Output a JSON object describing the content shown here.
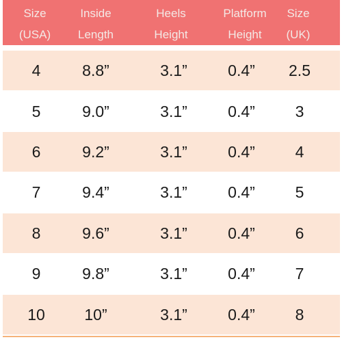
{
  "table": {
    "header_color": "#f07272",
    "header_text_color": "#f4e9e6",
    "alt_row_color": "#fce5d6",
    "rule_color": "#f6b27a",
    "columns": [
      {
        "line1": "Size",
        "line2": "(USA)"
      },
      {
        "line1": "Inside",
        "line2": "Length"
      },
      {
        "line1": "Heels",
        "line2": "Height"
      },
      {
        "line1": "Platform",
        "line2": "Height"
      },
      {
        "line1": "Size",
        "line2": "(UK)"
      }
    ],
    "rows": [
      [
        "4",
        "8.8”",
        "3.1”",
        "0.4”",
        "2.5"
      ],
      [
        "5",
        "9.0”",
        "3.1”",
        "0.4”",
        "3"
      ],
      [
        "6",
        "9.2”",
        "3.1”",
        "0.4”",
        "4"
      ],
      [
        "7",
        "9.4”",
        "3.1”",
        "0.4”",
        "5"
      ],
      [
        "8",
        "9.6”",
        "3.1”",
        "0.4”",
        "6"
      ],
      [
        "9",
        "9.8”",
        "3.1”",
        "0.4”",
        "7"
      ],
      [
        "10",
        "10”",
        "3.1”",
        "0.4”",
        "8"
      ]
    ]
  }
}
